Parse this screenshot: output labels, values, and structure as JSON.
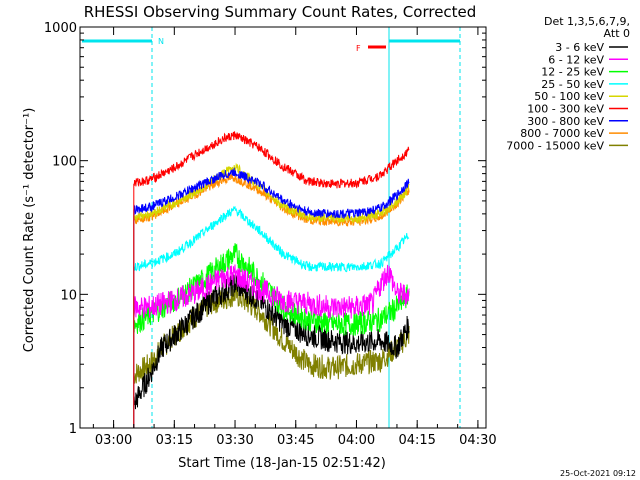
{
  "chart_data": {
    "type": "line",
    "title": "RHESSI Observing Summary Count Rates, Corrected",
    "xlabel": "Start Time (18-Jan-15 02:51:42)",
    "ylabel": "Corrected Count Rate (s⁻¹ detector⁻¹)",
    "y_scale": "log",
    "ylim": [
      1,
      1000
    ],
    "xlim": [
      "02:51:42",
      "04:32:00"
    ],
    "x_tick_labels": [
      "03:00",
      "03:15",
      "03:30",
      "03:45",
      "04:00",
      "04:15",
      "04:30"
    ],
    "y_tick_labels": [
      "1",
      "10",
      "100",
      "1000"
    ],
    "legend_header": [
      "Det 1,3,5,6,7,9,",
      "Att 0"
    ],
    "legend_position": "right",
    "series": [
      {
        "name": "3 - 6 keV",
        "color": "#000000",
        "x": [
          "03:05:00",
          "03:09:00",
          "03:12:00",
          "03:18:00",
          "03:24:00",
          "03:30:00",
          "03:36:00",
          "03:42:00",
          "03:48:00",
          "03:54:00",
          "04:00:00",
          "04:06:00",
          "04:10:00",
          "04:13:00"
        ],
        "y": [
          1.5,
          2.5,
          4,
          6,
          9,
          12,
          9,
          6,
          5,
          4.5,
          4.3,
          4.5,
          4,
          6
        ]
      },
      {
        "name": "6 - 12 keV",
        "color": "#ff00ff",
        "x": [
          "03:05:00",
          "03:09:00",
          "03:15:00",
          "03:21:00",
          "03:27:00",
          "03:30:00",
          "03:36:00",
          "03:42:00",
          "03:48:00",
          "03:54:00",
          "04:00:00",
          "04:04:00",
          "04:06:00",
          "04:08:00",
          "04:10:00",
          "04:13:00"
        ],
        "y": [
          8,
          8,
          9,
          10.5,
          13.5,
          14,
          11,
          9,
          8.5,
          8,
          8,
          8.5,
          12,
          15,
          10,
          10
        ]
      },
      {
        "name": "12 - 25 keV",
        "color": "#00ff00",
        "x": [
          "03:05:00",
          "03:09:00",
          "03:15:00",
          "03:21:00",
          "03:27:00",
          "03:30:00",
          "03:36:00",
          "03:42:00",
          "03:48:00",
          "03:54:00",
          "04:00:00",
          "04:06:00",
          "04:10:00",
          "04:13:00"
        ],
        "y": [
          6,
          7,
          9,
          12,
          17,
          20,
          13,
          8,
          6.5,
          6,
          6,
          6.5,
          8,
          10
        ]
      },
      {
        "name": "25 - 50 keV",
        "color": "#00ffff",
        "x": [
          "03:05:00",
          "03:09:00",
          "03:15:00",
          "03:21:00",
          "03:27:00",
          "03:30:00",
          "03:36:00",
          "03:42:00",
          "03:48:00",
          "03:54:00",
          "04:00:00",
          "04:06:00",
          "04:10:00",
          "04:13:00"
        ],
        "y": [
          16,
          17,
          20,
          27,
          38,
          43,
          30,
          20,
          16,
          16,
          16,
          17,
          22,
          28
        ]
      },
      {
        "name": "50 - 100 keV",
        "color": "#d6d600",
        "x": [
          "03:05:00",
          "03:09:00",
          "03:15:00",
          "03:21:00",
          "03:27:00",
          "03:30:00",
          "03:36:00",
          "03:42:00",
          "03:48:00",
          "03:54:00",
          "04:00:00",
          "04:06:00",
          "04:10:00",
          "04:13:00"
        ],
        "y": [
          38,
          40,
          48,
          60,
          80,
          90,
          65,
          45,
          38,
          37,
          37,
          40,
          50,
          62
        ]
      },
      {
        "name": "100 - 300 keV",
        "color": "#ff0000",
        "x": [
          "03:05:00",
          "03:09:00",
          "03:15:00",
          "03:21:00",
          "03:27:00",
          "03:30:00",
          "03:36:00",
          "03:42:00",
          "03:48:00",
          "03:54:00",
          "04:00:00",
          "04:06:00",
          "04:10:00",
          "04:13:00"
        ],
        "y": [
          68,
          72,
          88,
          115,
          145,
          155,
          125,
          90,
          70,
          67,
          68,
          78,
          100,
          120
        ]
      },
      {
        "name": "300 - 800 keV",
        "color": "#0000ff",
        "x": [
          "03:05:00",
          "03:09:00",
          "03:15:00",
          "03:21:00",
          "03:27:00",
          "03:30:00",
          "03:36:00",
          "03:42:00",
          "03:48:00",
          "03:54:00",
          "04:00:00",
          "04:06:00",
          "04:10:00",
          "04:13:00"
        ],
        "y": [
          43,
          45,
          53,
          65,
          78,
          82,
          68,
          50,
          41,
          40,
          40,
          44,
          55,
          70
        ]
      },
      {
        "name": "800 - 7000 keV",
        "color": "#ff8c00",
        "x": [
          "03:05:00",
          "03:09:00",
          "03:15:00",
          "03:21:00",
          "03:27:00",
          "03:30:00",
          "03:36:00",
          "03:42:00",
          "03:48:00",
          "03:54:00",
          "04:00:00",
          "04:06:00",
          "04:10:00",
          "04:13:00"
        ],
        "y": [
          36,
          38,
          46,
          58,
          72,
          75,
          60,
          44,
          36,
          35,
          35,
          38,
          48,
          60
        ]
      },
      {
        "name": "7000 - 15000 keV",
        "color": "#808000",
        "x": [
          "03:05:00",
          "03:09:00",
          "03:12:00",
          "03:18:00",
          "03:24:00",
          "03:30:00",
          "03:36:00",
          "03:42:00",
          "03:48:00",
          "03:54:00",
          "04:00:00",
          "04:06:00",
          "04:10:00",
          "04:13:00"
        ],
        "y": [
          2.5,
          3,
          4,
          6,
          8.5,
          10,
          7.5,
          4.5,
          3,
          2.8,
          3,
          3.2,
          4,
          5
        ]
      }
    ],
    "annotations": {
      "night_label": "N",
      "flare_label": "F",
      "night_color": "#00e5ee",
      "flare_color": "#ff0000"
    },
    "timestamp": "25-Oct-2021 09:12"
  }
}
